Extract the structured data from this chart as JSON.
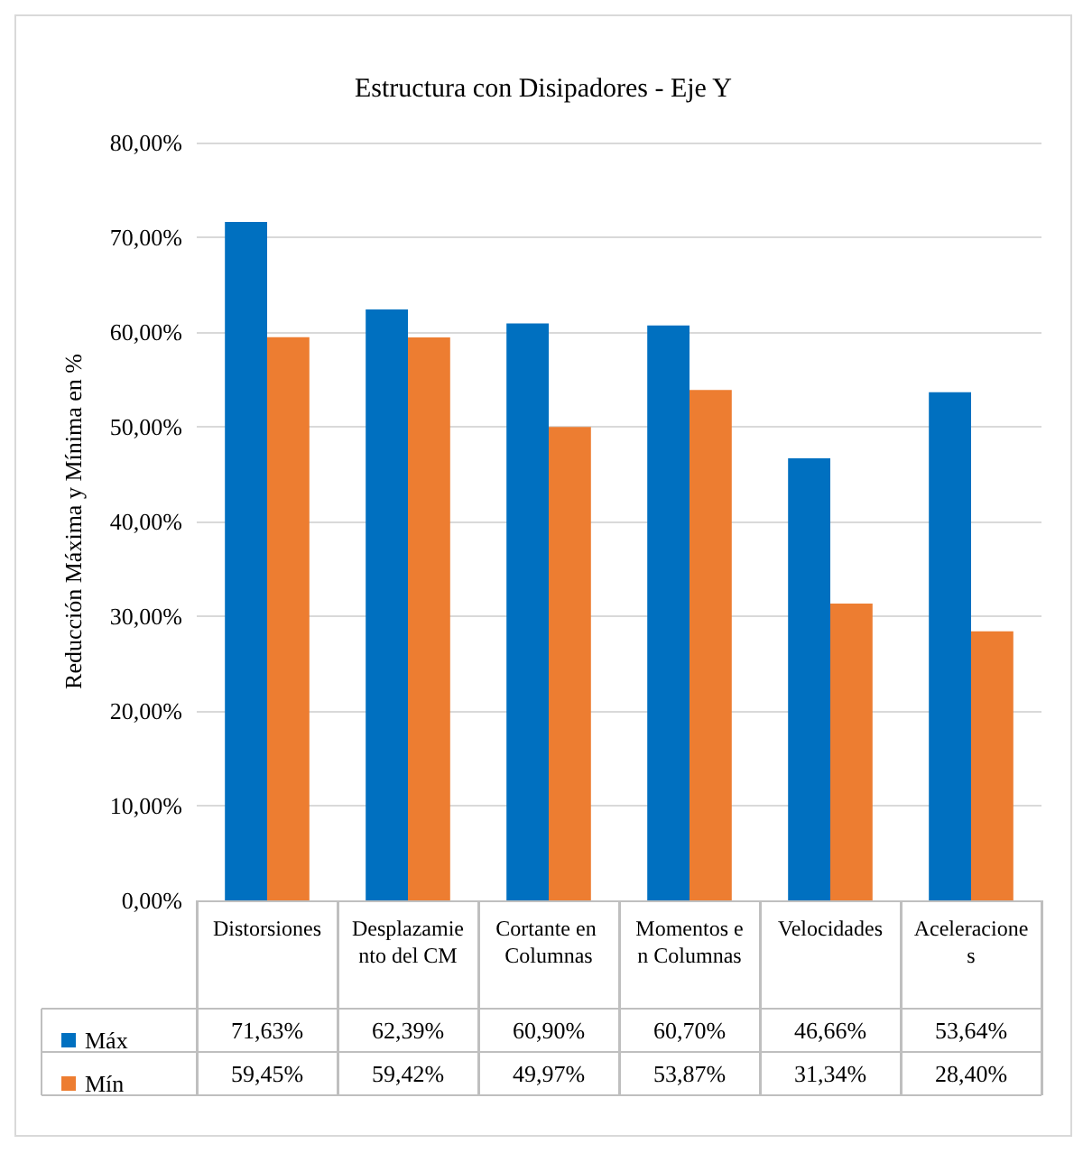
{
  "chart_data": {
    "type": "bar",
    "title": "Estructura con Disipadores - Eje Y",
    "ylabel": "Reducción Máxima y Mínima en %",
    "categories": [
      "Distorsiones",
      "Desplazamiento del CM",
      "Cortante en Columnas",
      "Momentos en Columnas",
      "Velocidades",
      "Aceleraciones"
    ],
    "series": [
      {
        "name": "Máx",
        "color": "#0070c0",
        "values": [
          71.63,
          62.39,
          60.9,
          60.7,
          46.66,
          53.64
        ],
        "value_labels": [
          "71,63%",
          "62,39%",
          "60,90%",
          "60,70%",
          "46,66%",
          "53,64%"
        ]
      },
      {
        "name": "Mín",
        "color": "#ed7d31",
        "values": [
          59.45,
          59.42,
          49.97,
          53.87,
          31.34,
          28.4
        ],
        "value_labels": [
          "59,45%",
          "59,42%",
          "49,97%",
          "53,87%",
          "31,34%",
          "28,40%"
        ]
      }
    ],
    "ylim": [
      0,
      80
    ],
    "yticks": [
      {
        "value": 0,
        "label": "0,00%"
      },
      {
        "value": 10,
        "label": "10,00%"
      },
      {
        "value": 20,
        "label": "20,00%"
      },
      {
        "value": 30,
        "label": "30,00%"
      },
      {
        "value": 40,
        "label": "40,00%"
      },
      {
        "value": 50,
        "label": "50,00%"
      },
      {
        "value": 60,
        "label": "60,00%"
      },
      {
        "value": 70,
        "label": "70,00%"
      },
      {
        "value": 80,
        "label": "80,00%"
      }
    ],
    "grid": "y",
    "legend": "bottom"
  }
}
